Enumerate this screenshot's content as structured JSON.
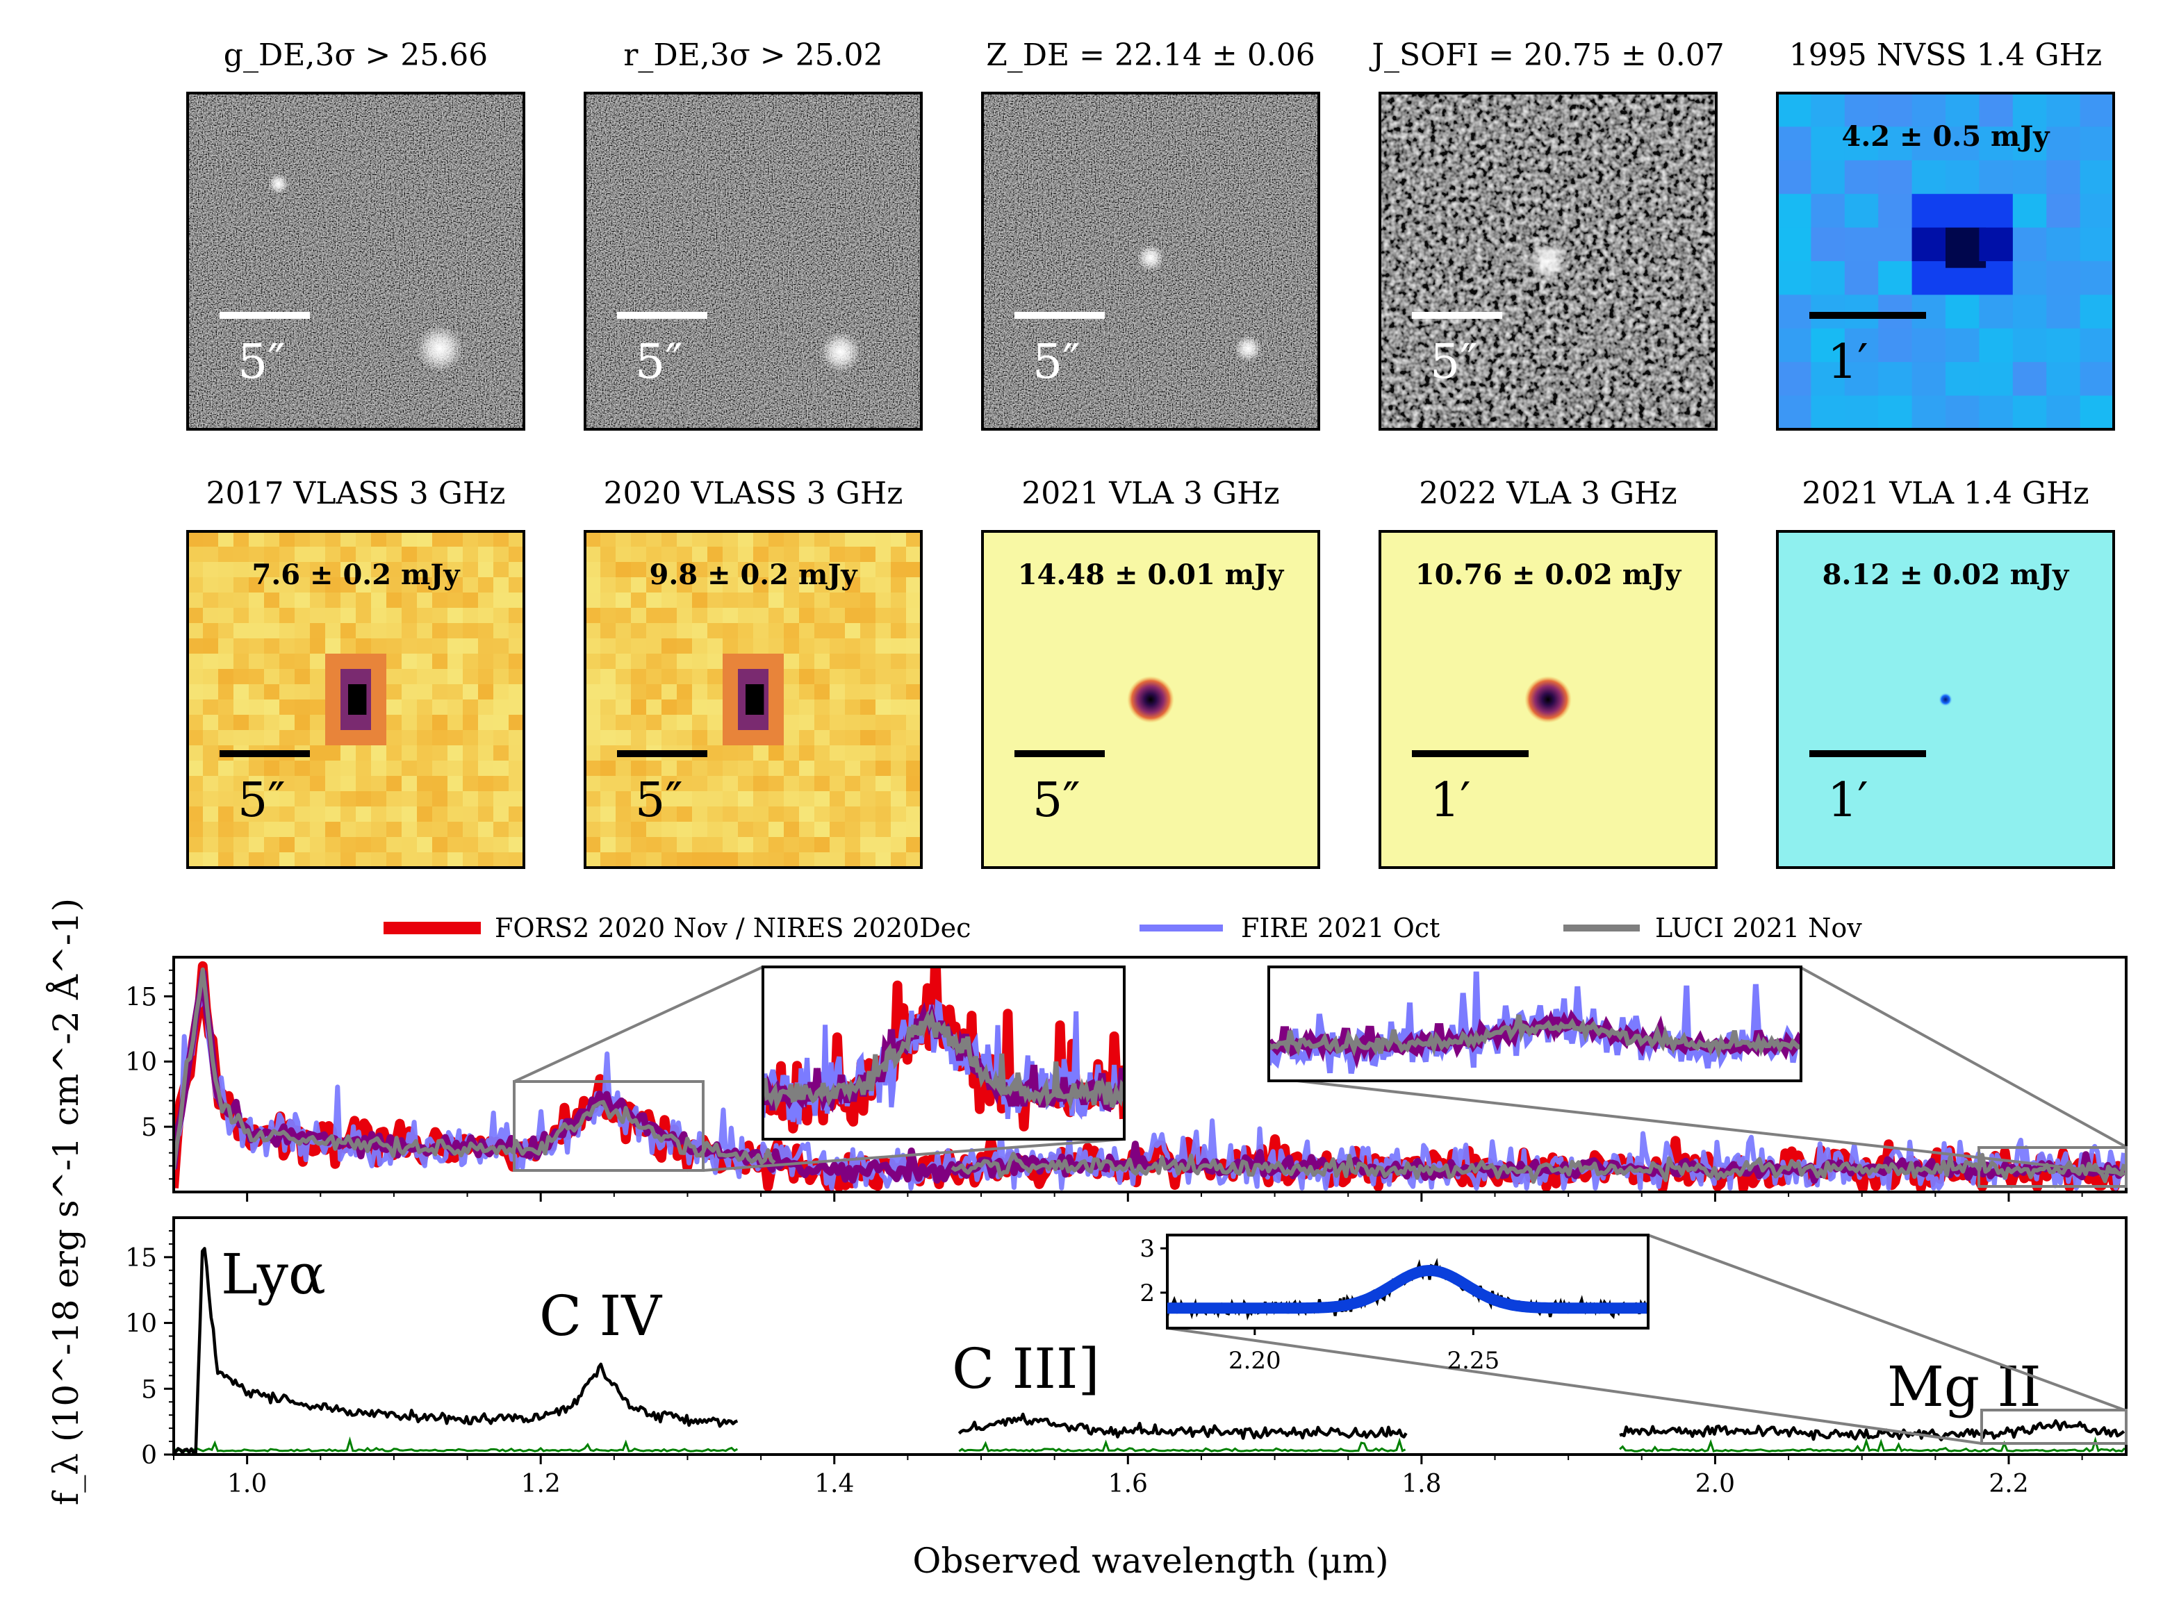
{
  "thumbnails": [
    {
      "title": "g_DE,3σ > 25.66",
      "scale": "5″",
      "style": "optical",
      "flux": ""
    },
    {
      "title": "r_DE,3σ > 25.02",
      "scale": "5″",
      "style": "optical",
      "flux": ""
    },
    {
      "title": "Z_DE = 22.14 ± 0.06",
      "scale": "5″",
      "style": "optical",
      "flux": ""
    },
    {
      "title": "J_SOFI = 20.75 ± 0.07",
      "scale": "5″",
      "style": "optical",
      "flux": ""
    },
    {
      "title": "1995 NVSS 1.4 GHz",
      "scale": "1′",
      "style": "blue",
      "flux": "4.2 ± 0.5 mJy"
    },
    {
      "title": "2017 VLASS 3 GHz",
      "scale": "5″",
      "style": "yellow-coarse",
      "flux": "7.6 ± 0.2 mJy"
    },
    {
      "title": "2020 VLASS 3 GHz",
      "scale": "5″",
      "style": "yellow-coarse",
      "flux": "9.8 ± 0.2 mJy"
    },
    {
      "title": "2021 VLA 3 GHz",
      "scale": "5″",
      "style": "yellow-smooth",
      "flux": "14.48 ± 0.01 mJy"
    },
    {
      "title": "2022 VLA 3 GHz",
      "scale": "1′",
      "style": "yellow-smooth",
      "flux": "10.76 ± 0.02 mJy"
    },
    {
      "title": "2021 VLA 1.4 GHz",
      "scale": "1′",
      "style": "cyan",
      "flux": "8.12 ± 0.02 mJy"
    }
  ],
  "colors": {
    "fors2": "#e8000b",
    "fire": "#7b7bff",
    "luci": "#7f7f7f",
    "combined": "#800080",
    "composite": "#000000",
    "noise": "#008000",
    "fit": "#0a3fdc"
  },
  "chart_data": [
    {
      "type": "line",
      "panel": "top",
      "legend_position": "top",
      "series": [
        {
          "name": "FORS2 2020 Nov / NIRES 2020Dec",
          "x": [
            0.95,
            0.97,
            0.98,
            1.0,
            1.1,
            1.2,
            1.24,
            1.3,
            1.35,
            1.4,
            1.5,
            1.6,
            1.8,
            2.0,
            2.2,
            2.28
          ],
          "y": [
            2,
            17,
            7,
            4.5,
            3.5,
            3.3,
            7,
            3.3,
            2.5,
            1.5,
            2,
            2.2,
            1.8,
            1.7,
            1.8,
            1.6
          ]
        },
        {
          "name": "FIRE 2021 Oct",
          "x": [
            0.95,
            0.97,
            0.98,
            1.0,
            1.1,
            1.2,
            1.24,
            1.3,
            1.35,
            1.4,
            1.5,
            1.6,
            1.8,
            2.0,
            2.2,
            2.28
          ],
          "y": [
            2,
            16,
            7,
            4.5,
            3.5,
            3.3,
            7,
            3.3,
            2.5,
            1.8,
            2,
            2.2,
            1.8,
            1.9,
            1.9,
            1.6
          ]
        },
        {
          "name": "LUCI 2021 Nov",
          "x": [
            0.95,
            0.97,
            0.98,
            1.0,
            1.1,
            1.2,
            1.24,
            1.3,
            1.35,
            1.5,
            1.6,
            1.8,
            2.0,
            2.2,
            2.28
          ],
          "y": [
            2,
            17,
            7,
            4.5,
            3.4,
            3.2,
            6.8,
            3.2,
            2.4,
            1.9,
            2.0,
            1.7,
            1.7,
            1.8,
            1.6
          ]
        }
      ],
      "ylim": [
        0,
        18
      ],
      "yticks": [
        "5",
        "10",
        "15"
      ]
    },
    {
      "type": "line",
      "panel": "bottom",
      "series": [
        {
          "x": [
            0.95,
            0.965,
            0.97,
            0.975,
            0.98,
            0.99,
            1.0,
            1.05,
            1.1,
            1.15,
            1.2,
            1.22,
            1.24,
            1.26,
            1.28,
            1.3,
            1.335
          ],
          "y": [
            0.2,
            0.2,
            17,
            11,
            6.5,
            5.5,
            4.8,
            3.5,
            3.0,
            2.6,
            2.8,
            3.6,
            6.5,
            3.8,
            3.0,
            2.6,
            2.4
          ]
        },
        {
          "x": [
            1.485,
            1.5,
            1.53,
            1.56,
            1.6,
            1.7,
            1.79
          ],
          "y": [
            2.0,
            2.1,
            2.8,
            2.0,
            1.8,
            1.7,
            1.6
          ]
        },
        {
          "x": [
            1.935,
            2.0,
            2.1,
            2.2,
            2.24,
            2.26,
            2.28
          ],
          "y": [
            1.7,
            1.8,
            1.6,
            1.6,
            2.4,
            1.8,
            1.6
          ]
        }
      ],
      "annotations": [
        "Lyα",
        "C IV",
        "C III]",
        "Mg II"
      ],
      "xlabel": "Observed wavelength (μm)",
      "ylabel": "f_λ (10^-18 erg s^-1 cm^-2 Å^-1)",
      "xlim": [
        0.95,
        2.28
      ],
      "ylim": [
        0,
        18
      ],
      "xticks": [
        "1.0",
        "1.2",
        "1.4",
        "1.6",
        "1.8",
        "2.0",
        "2.2"
      ],
      "yticks": [
        "0",
        "5",
        "10",
        "15"
      ]
    },
    {
      "type": "line",
      "panel": "inset",
      "series": [
        {
          "x": [
            2.18,
            2.22,
            2.235,
            2.24,
            2.245,
            2.26,
            2.29
          ],
          "y": [
            1.6,
            1.7,
            2.3,
            2.5,
            2.3,
            1.7,
            1.6
          ]
        }
      ],
      "xlim": [
        2.18,
        2.29
      ],
      "ylim": [
        1.2,
        3.3
      ],
      "xticks": [
        "2.20",
        "2.25"
      ],
      "yticks": [
        "2",
        "3"
      ]
    }
  ]
}
